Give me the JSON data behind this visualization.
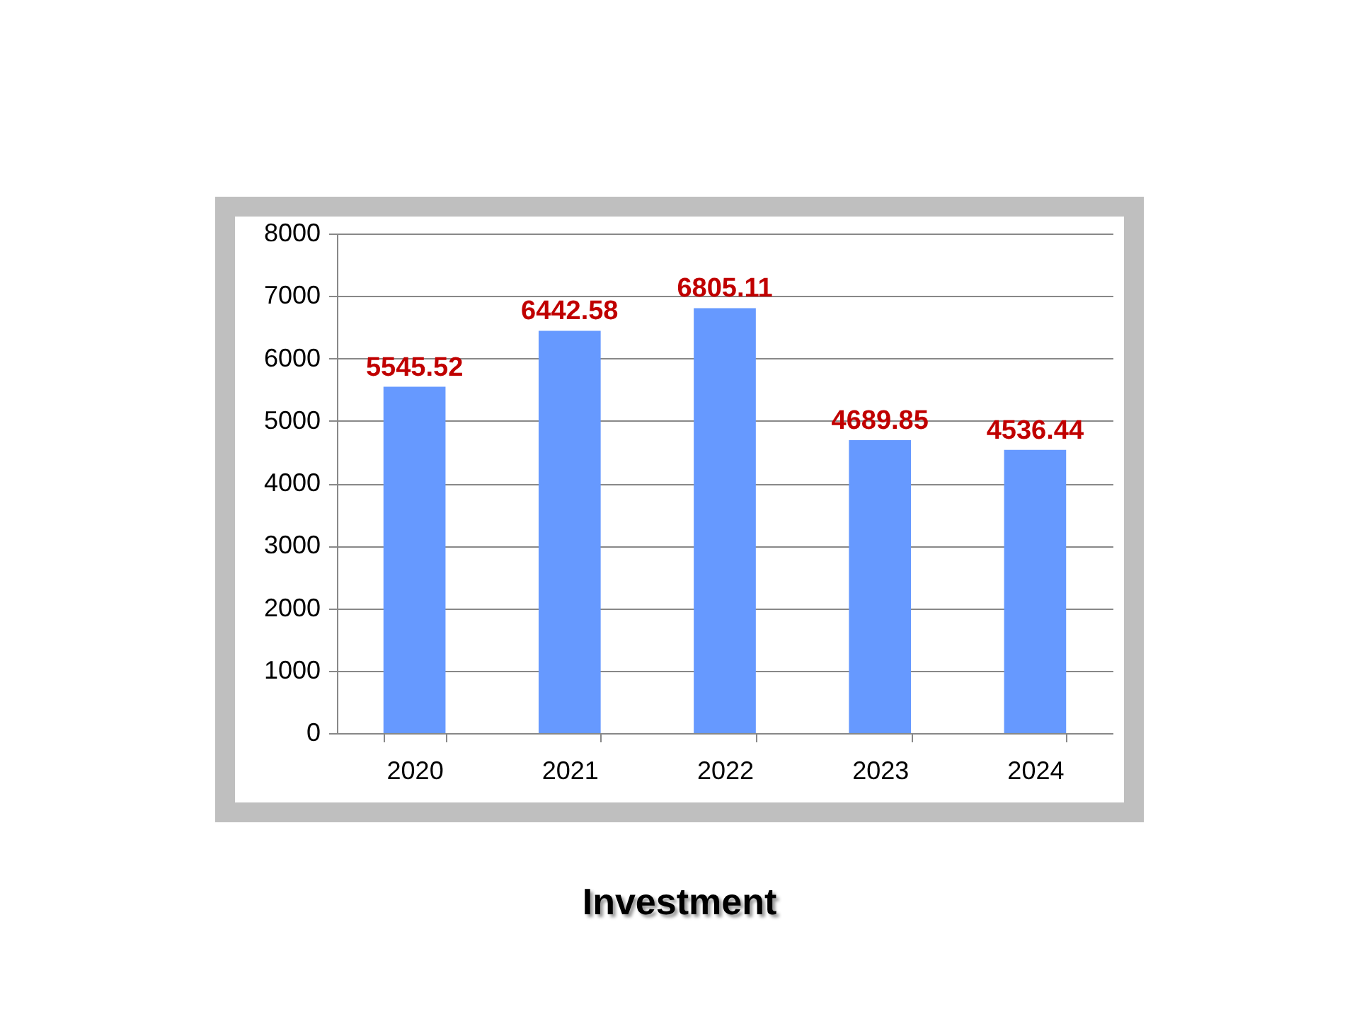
{
  "chart_data": {
    "type": "bar",
    "title": "Investment",
    "categories": [
      "2020",
      "2021",
      "2022",
      "2023",
      "2024"
    ],
    "values": [
      5545.52,
      6442.58,
      6805.11,
      4689.85,
      4536.44
    ],
    "color": "#6699ff",
    "ylim": [
      0,
      8000
    ],
    "yticks": [
      0,
      1000,
      2000,
      3000,
      4000,
      5000,
      6000,
      7000,
      8000
    ],
    "grid": "y",
    "data_labels": true
  }
}
